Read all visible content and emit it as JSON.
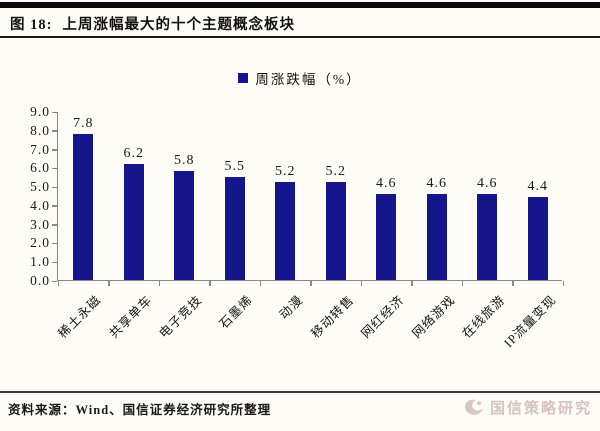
{
  "figure": {
    "label": "图 18:",
    "title": "上周涨幅最大的十个主题概念板块"
  },
  "legend": {
    "label": "周涨跌幅（%）"
  },
  "chart_data": {
    "type": "bar",
    "title": "上周涨幅最大的十个主题概念板块",
    "legend": [
      "周涨跌幅（%）"
    ],
    "legend_position": "top-center",
    "categories": [
      "稀土永磁",
      "共享单车",
      "电子竞技",
      "石墨烯",
      "动漫",
      "移动转售",
      "网红经济",
      "网络游戏",
      "在线旅游",
      "IP流量变现"
    ],
    "values": [
      7.8,
      6.2,
      5.8,
      5.5,
      5.2,
      5.2,
      4.6,
      4.6,
      4.6,
      4.4
    ],
    "ylim": [
      0,
      9
    ],
    "yticks": [
      "9.0",
      "8.0",
      "7.0",
      "6.0",
      "5.0",
      "4.0",
      "3.0",
      "2.0",
      "1.0",
      "0.0"
    ],
    "grid": false,
    "bar_color": "#15158c",
    "axis_color": "#8a8a8a"
  },
  "footer": {
    "source": "资料来源：Wind、国信证券经济研究所整理"
  },
  "watermark": {
    "text": "国信策略研究",
    "color": "#d6c3c1"
  }
}
